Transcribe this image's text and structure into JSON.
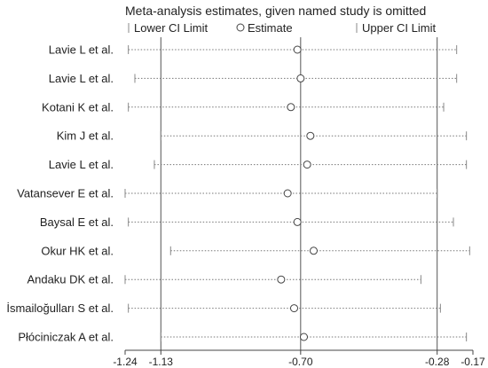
{
  "chart_data": {
    "type": "scatter",
    "title": "Meta-analysis estimates, given named study is omitted",
    "legend": {
      "position": "top",
      "entries": [
        "Lower CI Limit",
        "Estimate",
        "Upper CI Limit"
      ]
    },
    "x_ticks": [
      -1.24,
      -1.13,
      -0.7,
      -0.28,
      -0.17
    ],
    "x_tick_labels": [
      "-1.24",
      "-1.13",
      "-0.70",
      "-0.28",
      "-0.17"
    ],
    "reference_lines": [
      -1.13,
      -0.7,
      -0.28
    ],
    "xlim": [
      -1.24,
      -0.17
    ],
    "studies": [
      {
        "label": "Lavie L et al.",
        "lower": -1.23,
        "estimate": -0.71,
        "upper": -0.22
      },
      {
        "label": "Lavie L et al.",
        "lower": -1.21,
        "estimate": -0.7,
        "upper": -0.22
      },
      {
        "label": "Kotani K et al.",
        "lower": -1.23,
        "estimate": -0.73,
        "upper": -0.26
      },
      {
        "label": "Kim J et al.",
        "lower": -1.13,
        "estimate": -0.67,
        "upper": -0.19
      },
      {
        "label": "Lavie L et al.",
        "lower": -1.15,
        "estimate": -0.68,
        "upper": -0.19
      },
      {
        "label": "Vatansever E et al.",
        "lower": -1.24,
        "estimate": -0.74,
        "upper": -0.28
      },
      {
        "label": "Baysal E et al.",
        "lower": -1.23,
        "estimate": -0.71,
        "upper": -0.23
      },
      {
        "label": "Okur HK et al.",
        "lower": -1.1,
        "estimate": -0.66,
        "upper": -0.18
      },
      {
        "label": "Andaku DK et al.",
        "lower": -1.24,
        "estimate": -0.76,
        "upper": -0.33
      },
      {
        "label": "İsmailoğulları S et al.",
        "lower": -1.23,
        "estimate": -0.72,
        "upper": -0.27
      },
      {
        "label": "Płóciniczak A et al.",
        "lower": -1.13,
        "estimate": -0.69,
        "upper": -0.19
      }
    ]
  }
}
